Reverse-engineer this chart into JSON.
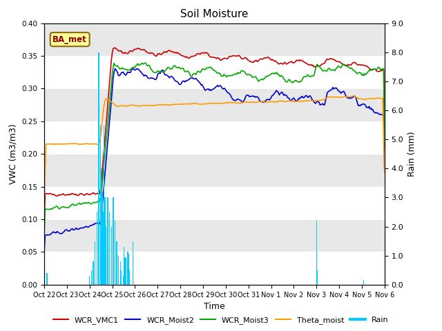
{
  "title": "Soil Moisture",
  "xlabel": "Time",
  "ylabel_left": "VWC (m3/m3)",
  "ylabel_right": "Rain (mm)",
  "ylim_left": [
    0.0,
    0.4
  ],
  "ylim_right": [
    0.0,
    9.0
  ],
  "xlim": [
    0,
    375
  ],
  "bg_light": "#e8e8e8",
  "bg_white": "#f5f5f5",
  "legend_label": "BA_met",
  "xtick_labels": [
    "Oct 22",
    "Oct 23",
    "Oct 24",
    "Oct 25",
    "Oct 26",
    "Oct 27",
    "Oct 28",
    "Oct 29",
    "Oct 30",
    "Oct 31",
    "Nov 1",
    "Nov 2",
    "Nov 3",
    "Nov 4",
    "Nov 5",
    "Nov 6"
  ],
  "xtick_positions": [
    0,
    25,
    50,
    75,
    100,
    125,
    150,
    175,
    200,
    225,
    250,
    275,
    300,
    325,
    350,
    375
  ],
  "ytick_left": [
    0.0,
    0.05,
    0.1,
    0.15,
    0.2,
    0.25,
    0.3,
    0.35,
    0.4
  ],
  "ytick_right": [
    0.0,
    1.0,
    2.0,
    3.0,
    4.0,
    5.0,
    6.0,
    7.0,
    8.0,
    9.0
  ],
  "line_colors": {
    "WCR_VMC1": "#cc0000",
    "WCR_Moist2": "#0000cc",
    "WCR_Moist3": "#00aa00",
    "Theta_moist": "#ff9900",
    "Rain": "#00ccff"
  },
  "n_points": 376,
  "event": 62
}
